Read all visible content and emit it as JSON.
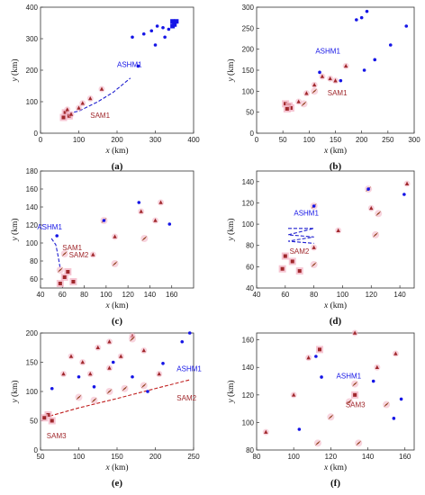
{
  "colors": {
    "blue": "#1515e6",
    "red": "#a0282c",
    "brown": "#8b3a12",
    "pink_halo": "#f4b8c8",
    "dash_blue": "#2020d0",
    "dash_red": "#c02020"
  },
  "chart_data": [
    {
      "caption": "(a)",
      "type": "scatter",
      "xlabel_var": "x",
      "xlabel_unit": "(km)",
      "ylabel_var": "y",
      "ylabel_unit": "(km)",
      "xlim": [
        0,
        400
      ],
      "ylim": [
        0,
        400
      ],
      "xticks": [
        0,
        100,
        200,
        300,
        400
      ],
      "yticks": [
        0,
        100,
        200,
        300,
        400
      ],
      "grid": false,
      "blue_points": [
        [
          240,
          305
        ],
        [
          255,
          213
        ],
        [
          270,
          315
        ],
        [
          290,
          325
        ],
        [
          300,
          280
        ],
        [
          305,
          340
        ],
        [
          320,
          335
        ],
        [
          325,
          305
        ],
        [
          335,
          330
        ]
      ],
      "blue_squares": [
        [
          345,
          355
        ],
        [
          350,
          345
        ],
        [
          355,
          355
        ],
        [
          345,
          340
        ]
      ],
      "red_triangles": [
        [
          70,
          75
        ],
        [
          80,
          60
        ],
        [
          100,
          80
        ],
        [
          110,
          95
        ],
        [
          130,
          110
        ],
        [
          160,
          140
        ]
      ],
      "brown_diamonds": [],
      "pink_squares": [
        [
          65,
          65
        ],
        [
          75,
          55
        ],
        [
          60,
          50
        ]
      ],
      "dashed_path": [
        [
          60,
          60
        ],
        [
          100,
          70
        ],
        [
          150,
          100
        ],
        [
          190,
          130
        ],
        [
          235,
          175
        ]
      ],
      "annotations": [
        {
          "text": "ASHM1",
          "x": 200,
          "y": 210,
          "color": "blue"
        },
        {
          "text": "SAM1",
          "x": 130,
          "y": 48,
          "color": "red"
        }
      ]
    },
    {
      "caption": "(b)",
      "type": "scatter",
      "xlabel_var": "x",
      "xlabel_unit": "(km)",
      "ylabel_var": "y",
      "ylabel_unit": "(km)",
      "xlim": [
        0,
        300
      ],
      "ylim": [
        0,
        300
      ],
      "xticks": [
        0,
        50,
        100,
        150,
        200,
        250,
        300
      ],
      "yticks": [
        0,
        50,
        100,
        150,
        200,
        250,
        300
      ],
      "grid": false,
      "blue_points": [
        [
          120,
          145
        ],
        [
          160,
          125
        ],
        [
          190,
          270
        ],
        [
          200,
          275
        ],
        [
          205,
          150
        ],
        [
          210,
          290
        ],
        [
          225,
          175
        ],
        [
          255,
          210
        ],
        [
          285,
          255
        ]
      ],
      "blue_squares": [],
      "red_triangles": [
        [
          80,
          75
        ],
        [
          95,
          95
        ],
        [
          110,
          115
        ],
        [
          125,
          135
        ],
        [
          150,
          125
        ],
        [
          170,
          160
        ],
        [
          140,
          130
        ]
      ],
      "brown_diamonds": [
        [
          90,
          70
        ],
        [
          110,
          100
        ]
      ],
      "pink_squares": [
        [
          55,
          70
        ],
        [
          62,
          65
        ],
        [
          65,
          60
        ],
        [
          58,
          58
        ]
      ],
      "dashed_path": [],
      "annotations": [
        {
          "text": "ASHM1",
          "x": 112,
          "y": 190,
          "color": "blue"
        },
        {
          "text": "SAM1",
          "x": 135,
          "y": 90,
          "color": "red"
        }
      ]
    },
    {
      "caption": "(c)",
      "type": "scatter",
      "xlabel_var": "x",
      "xlabel_unit": "(km)",
      "ylabel_var": "y",
      "ylabel_unit": "(km)",
      "xlim": [
        40,
        180
      ],
      "ylim": [
        50,
        180
      ],
      "xticks": [
        40,
        60,
        80,
        100,
        120,
        140,
        160
      ],
      "yticks": [
        60,
        80,
        100,
        120,
        140,
        160,
        180
      ],
      "grid": false,
      "blue_points": [
        [
          98,
          125
        ],
        [
          130,
          145
        ],
        [
          158,
          121
        ],
        [
          55,
          108
        ]
      ],
      "blue_squares": [],
      "red_triangles": [
        [
          88,
          87
        ],
        [
          108,
          107
        ],
        [
          132,
          135
        ],
        [
          145,
          125
        ],
        [
          150,
          145
        ]
      ],
      "brown_diamonds": [
        [
          98,
          125
        ],
        [
          108,
          77
        ],
        [
          135,
          105
        ],
        [
          58,
          70
        ],
        [
          62,
          88
        ]
      ],
      "pink_squares": [
        [
          62,
          62
        ],
        [
          65,
          68
        ],
        [
          58,
          55
        ],
        [
          70,
          57
        ]
      ],
      "dashed_path": [
        [
          50,
          105
        ],
        [
          54,
          98
        ],
        [
          56,
          86
        ],
        [
          58,
          72
        ]
      ],
      "annotations": [
        {
          "text": "ASHM1",
          "x": 37,
          "y": 115,
          "color": "blue"
        },
        {
          "text": "SAM1",
          "x": 60,
          "y": 92,
          "color": "red"
        },
        {
          "text": "SAM2",
          "x": 66,
          "y": 84,
          "color": "red"
        }
      ]
    },
    {
      "caption": "(d)",
      "type": "scatter",
      "xlabel_var": "x",
      "xlabel_unit": "(km)",
      "ylabel_var": "y",
      "ylabel_unit": "(km)",
      "xlim": [
        40,
        150
      ],
      "ylim": [
        40,
        150
      ],
      "xticks": [
        40,
        60,
        80,
        100,
        120,
        140
      ],
      "yticks": [
        40,
        60,
        80,
        100,
        120,
        140
      ],
      "grid": false,
      "blue_points": [
        [
          80,
          117
        ],
        [
          118,
          133
        ],
        [
          143,
          128
        ]
      ],
      "blue_squares": [],
      "red_triangles": [
        [
          80,
          78
        ],
        [
          97,
          94
        ],
        [
          120,
          115
        ],
        [
          145,
          138
        ]
      ],
      "brown_diamonds": [
        [
          80,
          117
        ],
        [
          118,
          133
        ],
        [
          125,
          110
        ],
        [
          123,
          90
        ],
        [
          80,
          62
        ]
      ],
      "pink_squares": [
        [
          60,
          70
        ],
        [
          65,
          65
        ],
        [
          70,
          56
        ],
        [
          58,
          58
        ]
      ],
      "dashed_path": [
        [
          62,
          96
        ],
        [
          80,
          96
        ],
        [
          62,
          90
        ],
        [
          80,
          88
        ],
        [
          62,
          84
        ],
        [
          80,
          82
        ]
      ],
      "annotations": [
        {
          "text": "ASHM1",
          "x": 66,
          "y": 108,
          "color": "blue"
        },
        {
          "text": "SAM2",
          "x": 63,
          "y": 72,
          "color": "red"
        }
      ]
    },
    {
      "caption": "(e)",
      "type": "scatter",
      "xlabel_var": "x",
      "xlabel_unit": "(km)",
      "ylabel_var": "y",
      "ylabel_unit": "(km)",
      "xlim": [
        50,
        250
      ],
      "ylim": [
        0,
        200
      ],
      "xticks": [
        50,
        100,
        150,
        200,
        250
      ],
      "yticks": [
        0,
        50,
        100,
        150,
        200
      ],
      "grid": false,
      "blue_points": [
        [
          65,
          105
        ],
        [
          100,
          125
        ],
        [
          120,
          108
        ],
        [
          145,
          150
        ],
        [
          170,
          125
        ],
        [
          190,
          100
        ],
        [
          210,
          148
        ],
        [
          235,
          185
        ],
        [
          245,
          200
        ]
      ],
      "blue_squares": [],
      "red_triangles": [
        [
          80,
          130
        ],
        [
          90,
          160
        ],
        [
          105,
          150
        ],
        [
          115,
          130
        ],
        [
          125,
          175
        ],
        [
          140,
          185
        ],
        [
          155,
          160
        ],
        [
          170,
          195
        ],
        [
          185,
          170
        ],
        [
          205,
          130
        ],
        [
          140,
          140
        ]
      ],
      "brown_diamonds": [
        [
          100,
          90
        ],
        [
          120,
          85
        ],
        [
          140,
          100
        ],
        [
          170,
          190
        ],
        [
          185,
          110
        ],
        [
          160,
          105
        ]
      ],
      "pink_squares": [
        [
          60,
          60
        ],
        [
          65,
          50
        ],
        [
          55,
          55
        ]
      ],
      "dashed_path": [
        [
          62,
          58
        ],
        [
          100,
          72
        ],
        [
          150,
          88
        ],
        [
          200,
          105
        ],
        [
          245,
          120
        ]
      ],
      "annotations": [
        {
          "text": "ASHM1",
          "x": 228,
          "y": 135,
          "color": "blue"
        },
        {
          "text": "SAM2",
          "x": 228,
          "y": 85,
          "color": "red"
        },
        {
          "text": "SAM3",
          "x": 58,
          "y": 20,
          "color": "red"
        }
      ]
    },
    {
      "caption": "(f)",
      "type": "scatter",
      "xlabel_var": "x",
      "xlabel_unit": "(km)",
      "ylabel_var": "y",
      "ylabel_unit": "(km)",
      "xlim": [
        80,
        165
      ],
      "ylim": [
        80,
        165
      ],
      "xticks": [
        80,
        100,
        120,
        140,
        160
      ],
      "yticks": [
        80,
        100,
        120,
        140,
        160
      ],
      "grid": false,
      "blue_points": [
        [
          103,
          95
        ],
        [
          112,
          148
        ],
        [
          115,
          133
        ],
        [
          143,
          130
        ],
        [
          158,
          117
        ],
        [
          154,
          103
        ]
      ],
      "blue_squares": [],
      "red_triangles": [
        [
          85,
          93
        ],
        [
          100,
          120
        ],
        [
          108,
          147
        ],
        [
          133,
          165
        ],
        [
          145,
          140
        ],
        [
          155,
          150
        ]
      ],
      "brown_diamonds": [
        [
          113,
          85
        ],
        [
          135,
          85
        ],
        [
          133,
          128
        ],
        [
          130,
          115
        ],
        [
          150,
          113
        ],
        [
          120,
          104
        ]
      ],
      "pink_squares": [
        [
          114,
          153
        ],
        [
          133,
          120
        ]
      ],
      "dashed_path": [],
      "annotations": [
        {
          "text": "ASHM1",
          "x": 123,
          "y": 132,
          "color": "blue"
        },
        {
          "text": "SAM3",
          "x": 128,
          "y": 111,
          "color": "red"
        }
      ]
    }
  ]
}
